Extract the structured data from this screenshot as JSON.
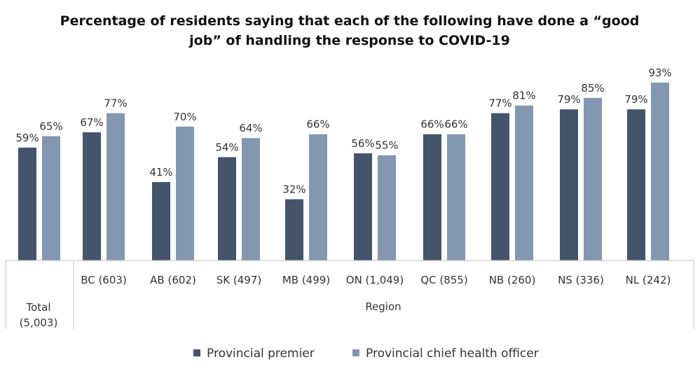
{
  "chart_data": {
    "type": "bar",
    "title_line1": "Percentage of residents saying that each of the following have done a “good",
    "title_line2": "job” of handling the response to COVID-19",
    "categories": [
      "Total (5,003)",
      "BC (603)",
      "AB (602)",
      "SK (497)",
      "MB (499)",
      "ON (1,049)",
      "QC (855)",
      "NB (260)",
      "NS (336)",
      "NL (242)"
    ],
    "total_label_line1": "Total",
    "total_label_line2": "(5,003)",
    "group_label": "Region",
    "series": [
      {
        "name": "Provincial premier",
        "color": "#44546a",
        "values": [
          59,
          67,
          41,
          54,
          32,
          56,
          66,
          77,
          79,
          79
        ],
        "labels": [
          "59%",
          "67%",
          "41%",
          "54%",
          "32%",
          "56%",
          "66%",
          "77%",
          "79%",
          "79%"
        ]
      },
      {
        "name": "Provincial chief health officer",
        "color": "#8497b0",
        "values": [
          65,
          77,
          70,
          64,
          66,
          55,
          66,
          81,
          85,
          93
        ],
        "labels": [
          "65%",
          "77%",
          "70%",
          "64%",
          "66%",
          "55%",
          "66%",
          "81%",
          "85%",
          "93%"
        ]
      }
    ],
    "ylim": [
      0,
      100
    ],
    "legend_position": "bottom",
    "grid": false
  }
}
